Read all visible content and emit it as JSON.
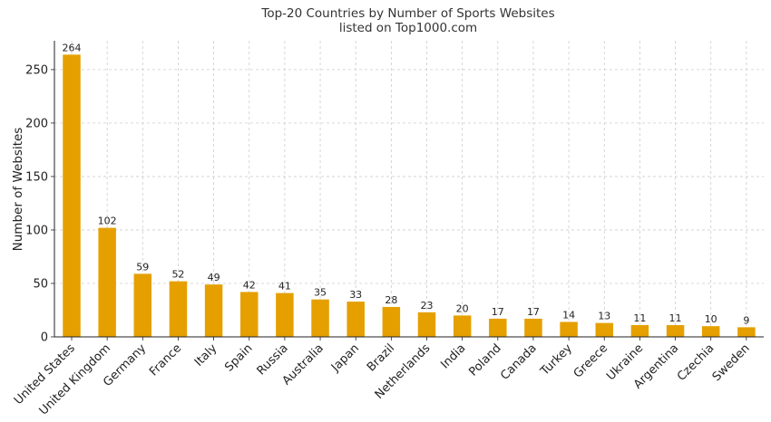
{
  "chart_data": {
    "type": "bar",
    "title_lines": [
      "Top-20 Countries by Number of Sports Websites",
      "listed on Top1000.com"
    ],
    "xlabel": "",
    "ylabel": "Number of Websites",
    "ylim": [
      0,
      277
    ],
    "yticks": [
      0,
      50,
      100,
      150,
      200,
      250
    ],
    "grid": true,
    "bar_color": "#E5A000",
    "categories": [
      "United States",
      "United Kingdom",
      "Germany",
      "France",
      "Italy",
      "Spain",
      "Russia",
      "Australia",
      "Japan",
      "Brazil",
      "Netherlands",
      "India",
      "Poland",
      "Canada",
      "Turkey",
      "Greece",
      "Ukraine",
      "Argentina",
      "Czechia",
      "Sweden"
    ],
    "values": [
      264,
      102,
      59,
      52,
      49,
      42,
      41,
      35,
      33,
      28,
      23,
      20,
      17,
      17,
      14,
      13,
      11,
      11,
      10,
      9
    ]
  }
}
